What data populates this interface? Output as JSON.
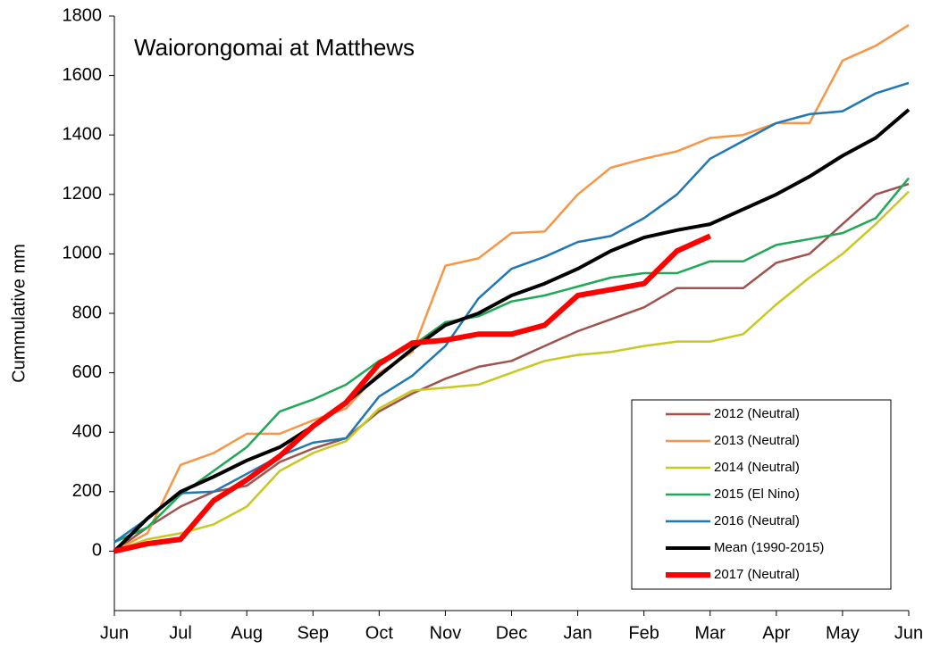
{
  "chart_data": {
    "type": "line",
    "title": "Waiorongomai at Matthews",
    "y_label": "Cummulative mm",
    "x": [
      0,
      0.5,
      1,
      1.5,
      2,
      2.5,
      3,
      3.5,
      4,
      4.5,
      5,
      5.5,
      6,
      6.5,
      7,
      7.5,
      8,
      8.5,
      9,
      9.5,
      10,
      10.5,
      11,
      11.5,
      12
    ],
    "xlim": [
      0,
      12
    ],
    "xticks": [
      {
        "value": 0,
        "label": "Jun"
      },
      {
        "value": 1,
        "label": "Jul"
      },
      {
        "value": 2,
        "label": "Aug"
      },
      {
        "value": 3,
        "label": "Sep"
      },
      {
        "value": 4,
        "label": "Oct"
      },
      {
        "value": 5,
        "label": "Nov"
      },
      {
        "value": 6,
        "label": "Dec"
      },
      {
        "value": 7,
        "label": "Jan"
      },
      {
        "value": 8,
        "label": "Feb"
      },
      {
        "value": 9,
        "label": "Mar"
      },
      {
        "value": 10,
        "label": "Apr"
      },
      {
        "value": 11,
        "label": "May"
      },
      {
        "value": 12,
        "label": "Jun"
      }
    ],
    "ylim": [
      -200,
      1800
    ],
    "yticks": [
      0,
      200,
      400,
      600,
      800,
      1000,
      1200,
      1400,
      1600,
      1800
    ],
    "grid": false,
    "legend": "lower right",
    "series": [
      {
        "name": "2012 (Neutral)",
        "color": "#a0524d",
        "width": 2.5,
        "values": [
          0,
          80,
          150,
          200,
          220,
          300,
          345,
          380,
          470,
          530,
          580,
          620,
          640,
          690,
          740,
          780,
          820,
          885,
          885,
          885,
          970,
          1000,
          1100,
          1200,
          1235
        ]
      },
      {
        "name": "2013 (Neutral)",
        "color": "#f79646",
        "width": 2.5,
        "values": [
          0,
          60,
          290,
          330,
          395,
          395,
          440,
          480,
          600,
          670,
          960,
          985,
          1070,
          1075,
          1200,
          1290,
          1320,
          1345,
          1390,
          1400,
          1440,
          1440,
          1650,
          1700,
          1770
        ]
      },
      {
        "name": "2014 (Neutral)",
        "color": "#c8c81e",
        "width": 2.5,
        "values": [
          0,
          40,
          60,
          90,
          150,
          270,
          330,
          370,
          480,
          540,
          550,
          560,
          600,
          640,
          660,
          670,
          690,
          705,
          705,
          730,
          830,
          920,
          1000,
          1100,
          1210
        ]
      },
      {
        "name": "2015 (El Nino)",
        "color": "#1fa855",
        "width": 2.5,
        "values": [
          30,
          80,
          190,
          270,
          350,
          470,
          510,
          560,
          640,
          690,
          770,
          790,
          840,
          860,
          890,
          920,
          935,
          935,
          975,
          975,
          1030,
          1050,
          1070,
          1120,
          1255
        ]
      },
      {
        "name": "2016 (Neutral)",
        "color": "#1f78b4",
        "width": 2.5,
        "values": [
          30,
          110,
          195,
          200,
          260,
          320,
          365,
          380,
          520,
          590,
          690,
          850,
          950,
          990,
          1040,
          1060,
          1120,
          1200,
          1320,
          1380,
          1440,
          1470,
          1480,
          1540,
          1575
        ]
      },
      {
        "name": "Mean (1990-2015)",
        "color": "#000000",
        "width": 4,
        "values": [
          0,
          110,
          200,
          250,
          305,
          350,
          420,
          500,
          590,
          680,
          760,
          800,
          860,
          900,
          950,
          1010,
          1055,
          1080,
          1100,
          1150,
          1200,
          1260,
          1330,
          1390,
          1485
        ]
      },
      {
        "name": "2017 (Neutral)",
        "color": "#ff0000",
        "width": 6,
        "values": [
          0,
          25,
          40,
          170,
          240,
          320,
          420,
          500,
          630,
          700,
          710,
          730,
          730,
          760,
          860,
          880,
          900,
          1010,
          1060,
          null,
          null,
          null,
          null,
          null,
          null
        ]
      }
    ]
  }
}
